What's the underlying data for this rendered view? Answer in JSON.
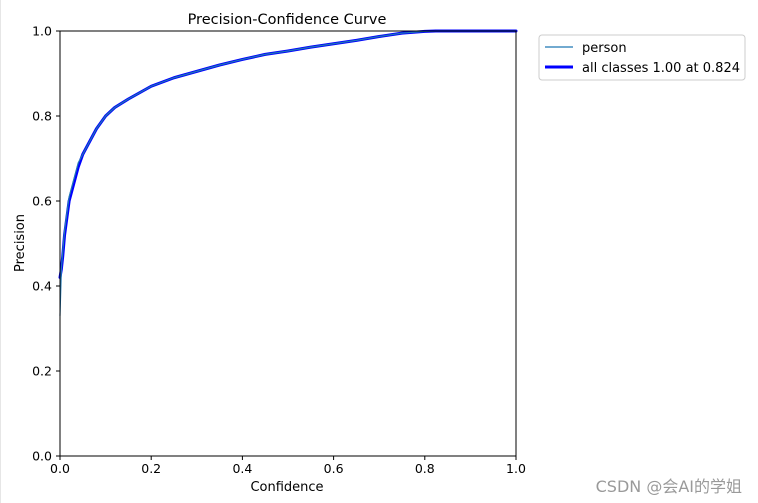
{
  "chart_data": {
    "type": "line",
    "title": "Precision-Confidence Curve",
    "xlabel": "Confidence",
    "ylabel": "Precision",
    "xlim": [
      0,
      1
    ],
    "ylim": [
      0,
      1
    ],
    "xticks": [
      "0.0",
      "0.2",
      "0.4",
      "0.6",
      "0.8",
      "1.0"
    ],
    "yticks": [
      "0.0",
      "0.2",
      "0.4",
      "0.6",
      "0.8",
      "1.0"
    ],
    "grid": false,
    "legend_position": "outside-top-right",
    "series": [
      {
        "name": "person",
        "color": "#1f77b4",
        "x": [
          0.0,
          0.003,
          0.006,
          0.01,
          0.015,
          0.02,
          0.03,
          0.04,
          0.05,
          0.06,
          0.08,
          0.1,
          0.12,
          0.15,
          0.2,
          0.25,
          0.3,
          0.35,
          0.4,
          0.45,
          0.5,
          0.55,
          0.6,
          0.65,
          0.7,
          0.75,
          0.8,
          0.824,
          0.85,
          0.9,
          0.95,
          1.0
        ],
        "values": [
          0.33,
          0.44,
          0.48,
          0.53,
          0.57,
          0.61,
          0.65,
          0.69,
          0.71,
          0.73,
          0.77,
          0.8,
          0.82,
          0.84,
          0.87,
          0.89,
          0.905,
          0.92,
          0.933,
          0.945,
          0.953,
          0.962,
          0.97,
          0.978,
          0.987,
          0.995,
          0.999,
          1.0,
          1.0,
          1.0,
          1.0,
          1.0
        ]
      },
      {
        "name": "all classes 1.00 at 0.824",
        "color": "#0000ff",
        "x": [
          0.0,
          0.003,
          0.006,
          0.01,
          0.015,
          0.02,
          0.03,
          0.04,
          0.05,
          0.06,
          0.08,
          0.1,
          0.12,
          0.15,
          0.2,
          0.25,
          0.3,
          0.35,
          0.4,
          0.45,
          0.5,
          0.55,
          0.6,
          0.65,
          0.7,
          0.75,
          0.8,
          0.824,
          0.85,
          0.9,
          0.95,
          1.0
        ],
        "values": [
          0.42,
          0.44,
          0.47,
          0.52,
          0.56,
          0.6,
          0.64,
          0.68,
          0.71,
          0.73,
          0.77,
          0.8,
          0.82,
          0.84,
          0.87,
          0.89,
          0.905,
          0.92,
          0.933,
          0.945,
          0.953,
          0.962,
          0.97,
          0.978,
          0.987,
          0.995,
          0.999,
          1.0,
          1.0,
          1.0,
          1.0,
          1.0
        ]
      }
    ]
  },
  "watermark": "CSDN @会AI的学姐"
}
